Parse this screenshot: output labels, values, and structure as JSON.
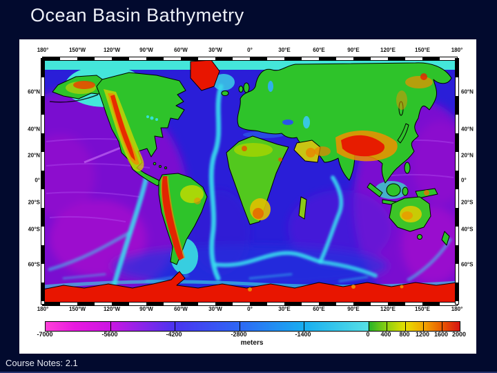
{
  "slide": {
    "title": "Ocean Basin Bathymetry",
    "footer": "Course Notes: 2.1"
  },
  "map": {
    "axis": {
      "top": [
        "180°",
        "150°W",
        "120°W",
        "90°W",
        "60°W",
        "30°W",
        "0°",
        "30°E",
        "60°E",
        "90°E",
        "120°E",
        "150°E",
        "180°"
      ],
      "bottom": [
        "180°",
        "150°W",
        "120°W",
        "90°W",
        "60°W",
        "30°W",
        "0°",
        "30°E",
        "60°E",
        "90°E",
        "120°E",
        "150°E",
        "180°"
      ],
      "left": [
        "60°N",
        "40°N",
        "20°N",
        "0°",
        "20°S",
        "40°S",
        "60°S"
      ],
      "right": [
        "60°N",
        "40°N",
        "20°N",
        "0°",
        "20°S",
        "40°S",
        "60°S"
      ]
    }
  },
  "colorbar": {
    "unit": "meters",
    "ticks": [
      "-7000",
      "-5600",
      "-4200",
      "-2800",
      "-1400",
      "0",
      "400",
      "800",
      "1200",
      "1600",
      "2000"
    ]
  },
  "colors": {
    "slide_background": "#020a2e",
    "panel_background": "#ffffff",
    "title_text": "#eef0f8",
    "deep_magenta": "#e81ae0",
    "deep_purple": "#7a10d0",
    "ocean_blue": "#2a1ed8",
    "ridge_cyan": "#38dff0",
    "shelf_cyan": "#44e6da",
    "land_green": "#2ec32a",
    "land_yellow": "#e0cc00",
    "land_orange": "#f09000",
    "land_red": "#e81500"
  }
}
